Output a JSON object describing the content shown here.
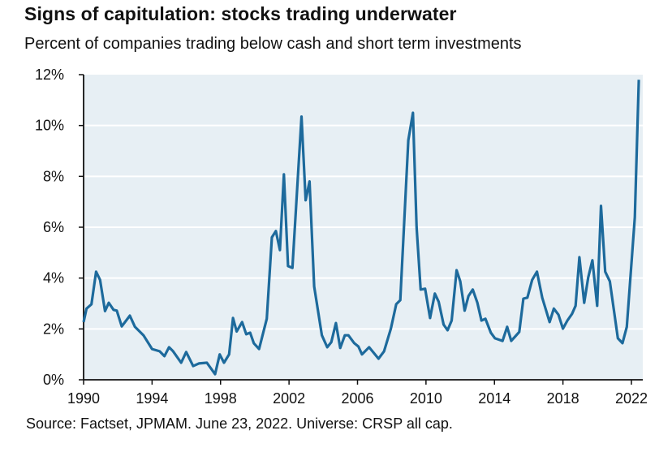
{
  "chart_data": {
    "type": "line",
    "title": "Signs of capitulation: stocks trading underwater",
    "subtitle": "Percent of companies trading below cash and short term investments",
    "source": "Source: Factset, JPMAM. June 23, 2022. Universe: CRSP all cap.",
    "xlabel": "",
    "ylabel": "",
    "xlim": [
      1990,
      2022.7
    ],
    "ylim": [
      0,
      12
    ],
    "grid": true,
    "legend": "none",
    "colors": {
      "line": "#1d6a9c",
      "plot_bg": "#e7eff4",
      "grid": "#ffffff"
    },
    "x_ticks": [
      1990,
      1994,
      1998,
      2002,
      2006,
      2010,
      2014,
      2018,
      2022
    ],
    "x_tick_labels": [
      "1990",
      "1994",
      "1998",
      "2002",
      "2006",
      "2010",
      "2014",
      "2018",
      "2022"
    ],
    "y_ticks": [
      0,
      2,
      4,
      6,
      8,
      10,
      12
    ],
    "y_tick_labels": [
      "0%",
      "2%",
      "4%",
      "6%",
      "8%",
      "10%",
      "12%"
    ],
    "series": [
      {
        "x": [
          1990.0,
          1990.17,
          1990.46,
          1990.73,
          1990.96,
          1991.25,
          1991.47,
          1991.75,
          1991.94,
          1992.23,
          1992.7,
          1993.0,
          1993.5,
          1994.0,
          1994.44,
          1994.72,
          1994.99,
          1995.23,
          1995.7,
          1995.99,
          1996.4,
          1996.73,
          1997.2,
          1997.68,
          1997.95,
          1998.2,
          1998.5,
          1998.73,
          1998.94,
          1999.26,
          1999.5,
          1999.73,
          1999.94,
          2000.25,
          2000.7,
          2001.0,
          2001.23,
          2001.47,
          2001.7,
          2001.94,
          2002.2,
          2002.73,
          2002.97,
          2003.2,
          2003.47,
          2003.92,
          2004.23,
          2004.47,
          2004.74,
          2004.99,
          2005.26,
          2005.47,
          2005.81,
          2006.05,
          2006.26,
          2006.68,
          2007.23,
          2007.55,
          2007.95,
          2008.26,
          2008.5,
          2008.97,
          2009.24,
          2009.45,
          2009.69,
          2009.95,
          2010.24,
          2010.52,
          2010.74,
          2011.03,
          2011.26,
          2011.5,
          2011.79,
          2012.0,
          2012.26,
          2012.48,
          2012.73,
          2013.0,
          2013.24,
          2013.47,
          2013.79,
          2014.03,
          2014.47,
          2014.74,
          2014.98,
          2015.45,
          2015.69,
          2015.92,
          2016.2,
          2016.48,
          2016.79,
          2017.22,
          2017.47,
          2017.74,
          2018.0,
          2018.26,
          2018.53,
          2018.74,
          2018.96,
          2019.24,
          2019.48,
          2019.72,
          2020.0,
          2020.22,
          2020.47,
          2020.74,
          2021.21,
          2021.48,
          2021.73,
          2022.2,
          2022.43
        ],
        "y": [
          2.27,
          2.8,
          2.97,
          4.25,
          3.93,
          2.7,
          3.03,
          2.75,
          2.72,
          2.1,
          2.52,
          2.08,
          1.75,
          1.21,
          1.12,
          0.93,
          1.28,
          1.12,
          0.67,
          1.09,
          0.54,
          0.64,
          0.67,
          0.22,
          1.0,
          0.67,
          1.0,
          2.43,
          1.9,
          2.27,
          1.79,
          1.85,
          1.44,
          1.21,
          2.4,
          5.6,
          5.85,
          5.1,
          8.08,
          4.47,
          4.4,
          10.35,
          7.06,
          7.8,
          3.67,
          1.75,
          1.28,
          1.48,
          2.23,
          1.25,
          1.75,
          1.75,
          1.44,
          1.31,
          1.0,
          1.28,
          0.83,
          1.12,
          2.01,
          2.97,
          3.13,
          9.42,
          10.5,
          6.0,
          3.55,
          3.58,
          2.43,
          3.39,
          3.07,
          2.17,
          1.95,
          2.33,
          4.31,
          3.87,
          2.72,
          3.29,
          3.55,
          3.03,
          2.33,
          2.4,
          1.85,
          1.63,
          1.53,
          2.08,
          1.53,
          1.88,
          3.19,
          3.23,
          3.93,
          4.25,
          3.23,
          2.27,
          2.8,
          2.56,
          2.01,
          2.33,
          2.59,
          2.91,
          4.82,
          3.03,
          4.03,
          4.7,
          2.91,
          6.84,
          4.25,
          3.87,
          1.63,
          1.44,
          2.08,
          6.39,
          11.8
        ]
      }
    ]
  }
}
